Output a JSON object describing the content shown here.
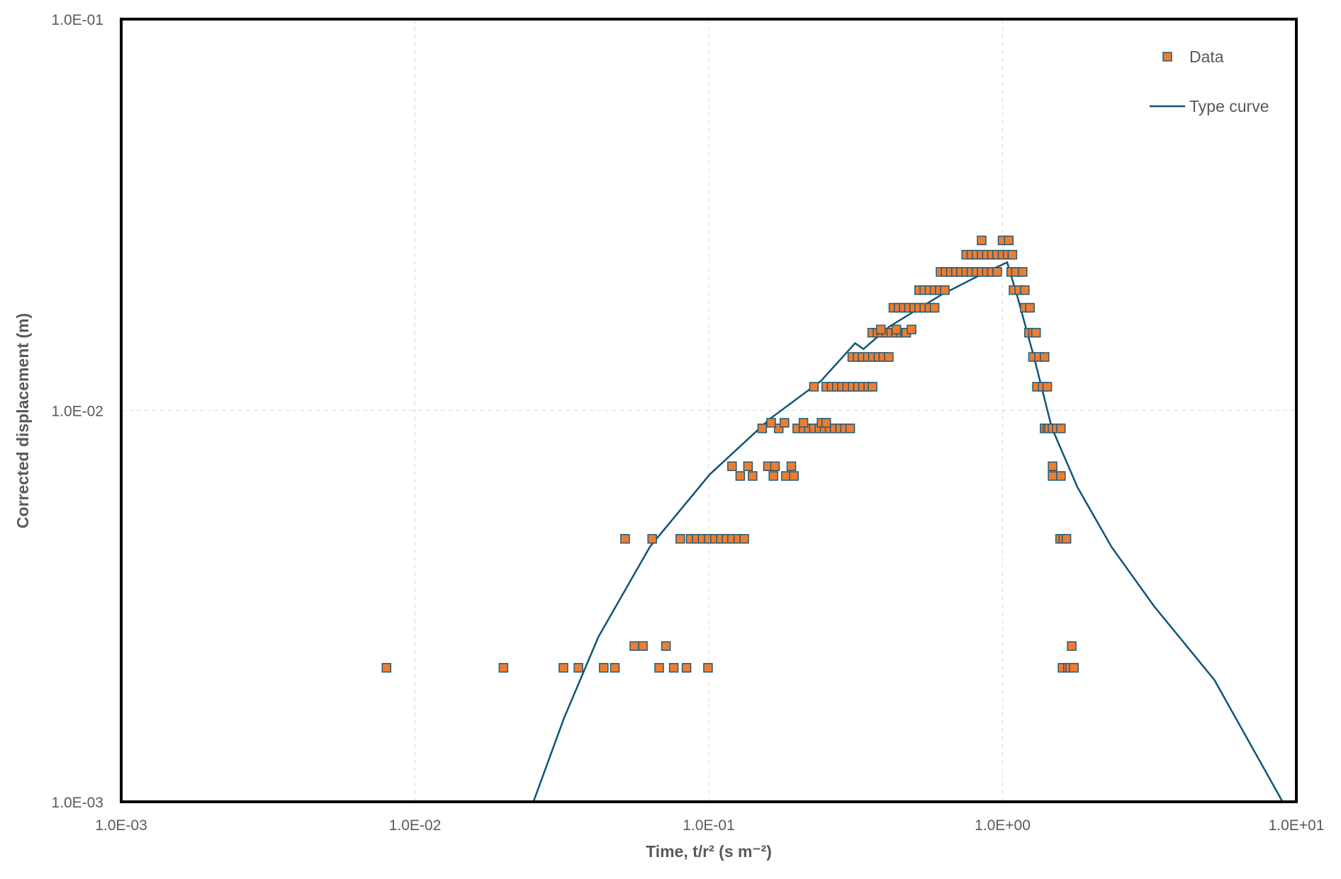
{
  "chart_data": {
    "type": "scatter",
    "title": "",
    "xlabel": "Time, t/r² (s m⁻²)",
    "ylabel": "Corrected displacement (m)",
    "xscale": "log",
    "yscale": "log",
    "xlim": [
      0.001,
      10
    ],
    "ylim": [
      0.001,
      0.1
    ],
    "grid": true,
    "legend_position": "top-right",
    "x_ticks": [
      0.001,
      0.01,
      0.1,
      1,
      10
    ],
    "x_tick_labels": [
      "1.0E-03",
      "1.0E-02",
      "1.0E-01",
      "1.0E+00",
      "1.0E+01"
    ],
    "y_ticks": [
      0.001,
      0.01,
      0.1
    ],
    "y_tick_labels": [
      "1.0E-03",
      "1.0E-02",
      "1.0E-01"
    ],
    "colors": {
      "marker_fill": "#ED7D31",
      "marker_edge": "#1F5C7A",
      "curve": "#0E5577"
    },
    "series": [
      {
        "name": "Data",
        "kind": "markers",
        "rows": [
          {
            "y": 0.0022,
            "x": [
              0.008,
              0.02,
              0.032,
              0.036,
              0.0439,
              0.0479,
              0.0678,
              0.076,
              0.084,
              0.0994,
              1.6,
              1.67,
              1.7,
              1.75
            ]
          },
          {
            "y": 0.0025,
            "x": [
              0.0558,
              0.0597,
              0.0715,
              1.72
            ]
          },
          {
            "y": 0.0047,
            "x": [
              0.0519,
              0.0642,
              0.08,
              0.0868,
              0.091,
              0.0953,
              0.1,
              0.105,
              0.11,
              0.115,
              0.12,
              0.126,
              0.132,
              1.57,
              1.61,
              1.65
            ]
          },
          {
            "y": 0.0068,
            "x": [
              0.128,
              0.141,
              0.166,
              0.183,
              0.195,
              1.48,
              1.58
            ]
          },
          {
            "y": 0.0072,
            "x": [
              0.12,
              0.136,
              0.159,
              0.168,
              0.191,
              1.48
            ]
          },
          {
            "y": 0.009,
            "x": [
              0.152,
              0.173,
              0.2,
              0.21,
              0.219,
              0.228,
              0.238,
              0.248,
              0.258,
              0.268,
              0.28,
              0.291,
              0.303,
              1.39,
              1.42,
              1.44,
              1.48,
              1.53,
              1.58
            ]
          },
          {
            "y": 0.0093,
            "x": [
              0.163,
              0.181,
              0.21,
              0.242,
              0.251
            ]
          },
          {
            "y": 0.0115,
            "x": [
              0.228,
              0.251,
              0.262,
              0.273,
              0.284,
              0.296,
              0.309,
              0.322,
              0.335,
              0.349,
              0.361,
              1.31,
              1.37,
              1.42
            ]
          },
          {
            "y": 0.0137,
            "x": [
              0.308,
              0.321,
              0.334,
              0.348,
              0.362,
              0.378,
              0.393,
              0.41,
              1.27,
              1.33,
              1.39
            ]
          },
          {
            "y": 0.0158,
            "x": [
              0.36,
              0.375,
              0.388,
              0.402,
              0.418,
              0.434,
              0.45,
              0.465,
              0.47,
              1.23,
              1.27,
              1.3
            ]
          },
          {
            "y": 0.0161,
            "x": [
              0.385,
              0.435,
              0.49
            ]
          },
          {
            "y": 0.0183,
            "x": [
              0.425,
              0.443,
              0.461,
              0.48,
              0.5,
              0.52,
              0.542,
              0.564,
              0.587,
              1.19,
              1.24
            ]
          },
          {
            "y": 0.0203,
            "x": [
              0.52,
              0.542,
              0.564,
              0.587,
              0.611,
              0.636,
              1.09,
              1.14,
              1.19
            ]
          },
          {
            "y": 0.0226,
            "x": [
              0.615,
              0.64,
              0.667,
              0.694,
              0.723,
              0.752,
              0.783,
              0.815,
              0.849,
              0.884,
              0.92,
              0.958,
              1.07,
              1.11,
              1.17
            ]
          },
          {
            "y": 0.025,
            "x": [
              0.752,
              0.783,
              0.815,
              0.849,
              0.884,
              0.92,
              0.958,
              1.0,
              1.04,
              1.08
            ]
          },
          {
            "y": 0.0272,
            "x": [
              0.849,
              1.0,
              1.05
            ]
          }
        ]
      },
      {
        "name": "Type curve",
        "kind": "line",
        "x": [
          0.0253,
          0.0322,
          0.0421,
          0.063,
          0.1007,
          0.161,
          0.241,
          0.315,
          0.336,
          0.411,
          0.615,
          0.86,
          1.037,
          1.12,
          1.285,
          1.47,
          1.8,
          2.35,
          3.29,
          5.26,
          8.98
        ],
        "y": [
          0.001,
          0.00164,
          0.00264,
          0.00448,
          0.00686,
          0.0095,
          0.0119,
          0.01486,
          0.01435,
          0.01636,
          0.0197,
          0.0224,
          0.0239,
          0.0197,
          0.01352,
          0.00904,
          0.00636,
          0.00448,
          0.00315,
          0.00205,
          0.001
        ]
      }
    ]
  }
}
